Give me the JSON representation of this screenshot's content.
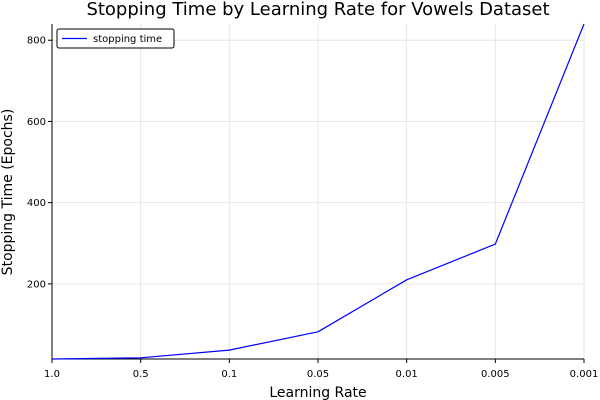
{
  "chart_data": {
    "type": "line",
    "title": "Stopping Time by Learning Rate for Vowels Dataset",
    "xlabel": "Learning Rate",
    "ylabel": "Stopping Time (Epochs)",
    "categories": [
      "1.0",
      "0.5",
      "0.1",
      "0.05",
      "0.01",
      "0.005",
      "0.001"
    ],
    "series": [
      {
        "name": "stopping time",
        "color": "#0000ff",
        "values": [
          15,
          18,
          37,
          82,
          210,
          298,
          840
        ]
      }
    ],
    "yticks": [
      200,
      400,
      600,
      800
    ],
    "ylim": [
      15,
      840
    ],
    "grid": true,
    "legend": "top-left"
  }
}
